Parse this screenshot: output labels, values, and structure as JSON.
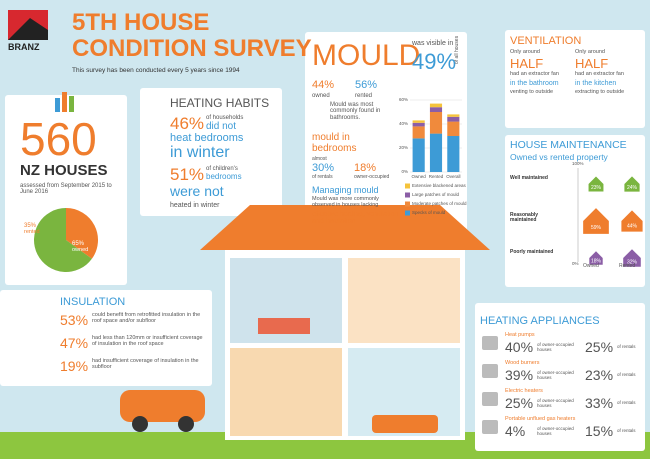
{
  "header": {
    "brand": "BRANZ",
    "title_line1": "5TH HOUSE",
    "title_line2": "CONDITION SURVEY",
    "subtitle": "This survey has been conducted every 5 years since 1994"
  },
  "houses": {
    "number": "560",
    "label": "NZ HOUSES",
    "note": "assessed from September 2015 to June 2016",
    "pie": {
      "names": [
        "rented",
        "owned"
      ],
      "values": [
        35,
        65
      ],
      "value_labels": [
        "35%",
        "65%"
      ],
      "colors": [
        "#ef7d2d",
        "#7ab53f"
      ]
    }
  },
  "heating_habits": {
    "title": "HEATING HABITS",
    "stat1": "46%",
    "text1a": "of households",
    "text1b": "did not",
    "text1c": "heat bedrooms",
    "text1d": "in winter",
    "stat2": "51%",
    "text2a": "of children's",
    "text2b": "bedrooms",
    "text2c": "were not",
    "text2d": "heated in winter"
  },
  "mould": {
    "title": "MOULD",
    "visible": "was visible in",
    "pct": "49%",
    "side": "of all houses",
    "owned_pct": "44%",
    "owned": "owned",
    "rented_pct": "56%",
    "rented": "rented",
    "bathrooms": "Mould was most commonly found in bathrooms.",
    "bedrooms_title": "mould in bedrooms",
    "almost": "almost",
    "rentals_pct": "30%",
    "rentals": "of rentals",
    "owner_pct": "18%",
    "owner": "owner-occupied",
    "managing_title": "Managing mould",
    "managing_text": "Mould was more commonly observed in houses lacking",
    "managing_emph": "effective heating, ventilation and insulation",
    "chart": {
      "categories": [
        "Owned",
        "Rented",
        "Overall"
      ],
      "ylim": [
        0,
        60
      ],
      "yticks": [
        {
          "value": 0,
          "label": "0%"
        },
        {
          "value": 20,
          "label": "20%"
        },
        {
          "value": 40,
          "label": "40%"
        },
        {
          "value": 60,
          "label": "60%"
        }
      ],
      "series": [
        {
          "name": "Specks of mould",
          "color": "#3d9bd6",
          "values": [
            28,
            32,
            30
          ]
        },
        {
          "name": "Moderate patches of mould",
          "color": "#f08a3c",
          "values": [
            10,
            18,
            12
          ]
        },
        {
          "name": "Large patches of mould",
          "color": "#8b5ea6",
          "values": [
            3,
            4,
            4
          ]
        },
        {
          "name": "Extensive blackened areas",
          "color": "#f5c33b",
          "values": [
            2,
            3,
            2
          ]
        }
      ]
    }
  },
  "ventilation": {
    "title": "VENTILATION",
    "col1": [
      "Only around",
      "HALF",
      "had an extractor fan",
      "in the bathroom",
      "venting to outside"
    ],
    "col2": [
      "Only around",
      "HALF",
      "had an extractor fan",
      "in the kitchen",
      "extracting to outside"
    ]
  },
  "maintenance": {
    "title": "HOUSE MAINTENANCE",
    "subtitle": "Owned vs rented property",
    "top": "100%",
    "bottom": "0%",
    "rows": [
      "Well maintained",
      "Reasonably maintained",
      "Poorly maintained"
    ],
    "columns": [
      "Owned",
      "Rented"
    ],
    "colors": [
      "#7ab53f",
      "#ef7d2d",
      "#8b5ea6"
    ],
    "owned": [
      23,
      59,
      18
    ],
    "owned_labels": [
      "23%",
      "59%",
      "18%"
    ],
    "rented": [
      24,
      44,
      32
    ],
    "rented_labels": [
      "24%",
      "44%",
      "32%"
    ]
  },
  "insulation": {
    "title": "INSULATION",
    "items": [
      {
        "pct": "53%",
        "text": "could benefit from retrofitted insulation in the roof space and/or subfloor"
      },
      {
        "pct": "47%",
        "text": "had less than 120mm or insufficient coverage of insulation in the roof space"
      },
      {
        "pct": "19%",
        "text": "had insufficient coverage of insulation in the subfloor"
      }
    ]
  },
  "appliances": {
    "title": "HEATING APPLIANCES",
    "owner_text": "of owner-occupied houses",
    "rental_text": "of rentals",
    "items": [
      {
        "name": "Heat pumps",
        "owner": "40%",
        "rental": "25%"
      },
      {
        "name": "Wood burners",
        "owner": "39%",
        "rental": "23%"
      },
      {
        "name": "Electric heaters",
        "owner": "25%",
        "rental": "33%"
      },
      {
        "name": "Portable unflued gas heaters",
        "owner": "4%",
        "rental": "15%"
      }
    ]
  }
}
